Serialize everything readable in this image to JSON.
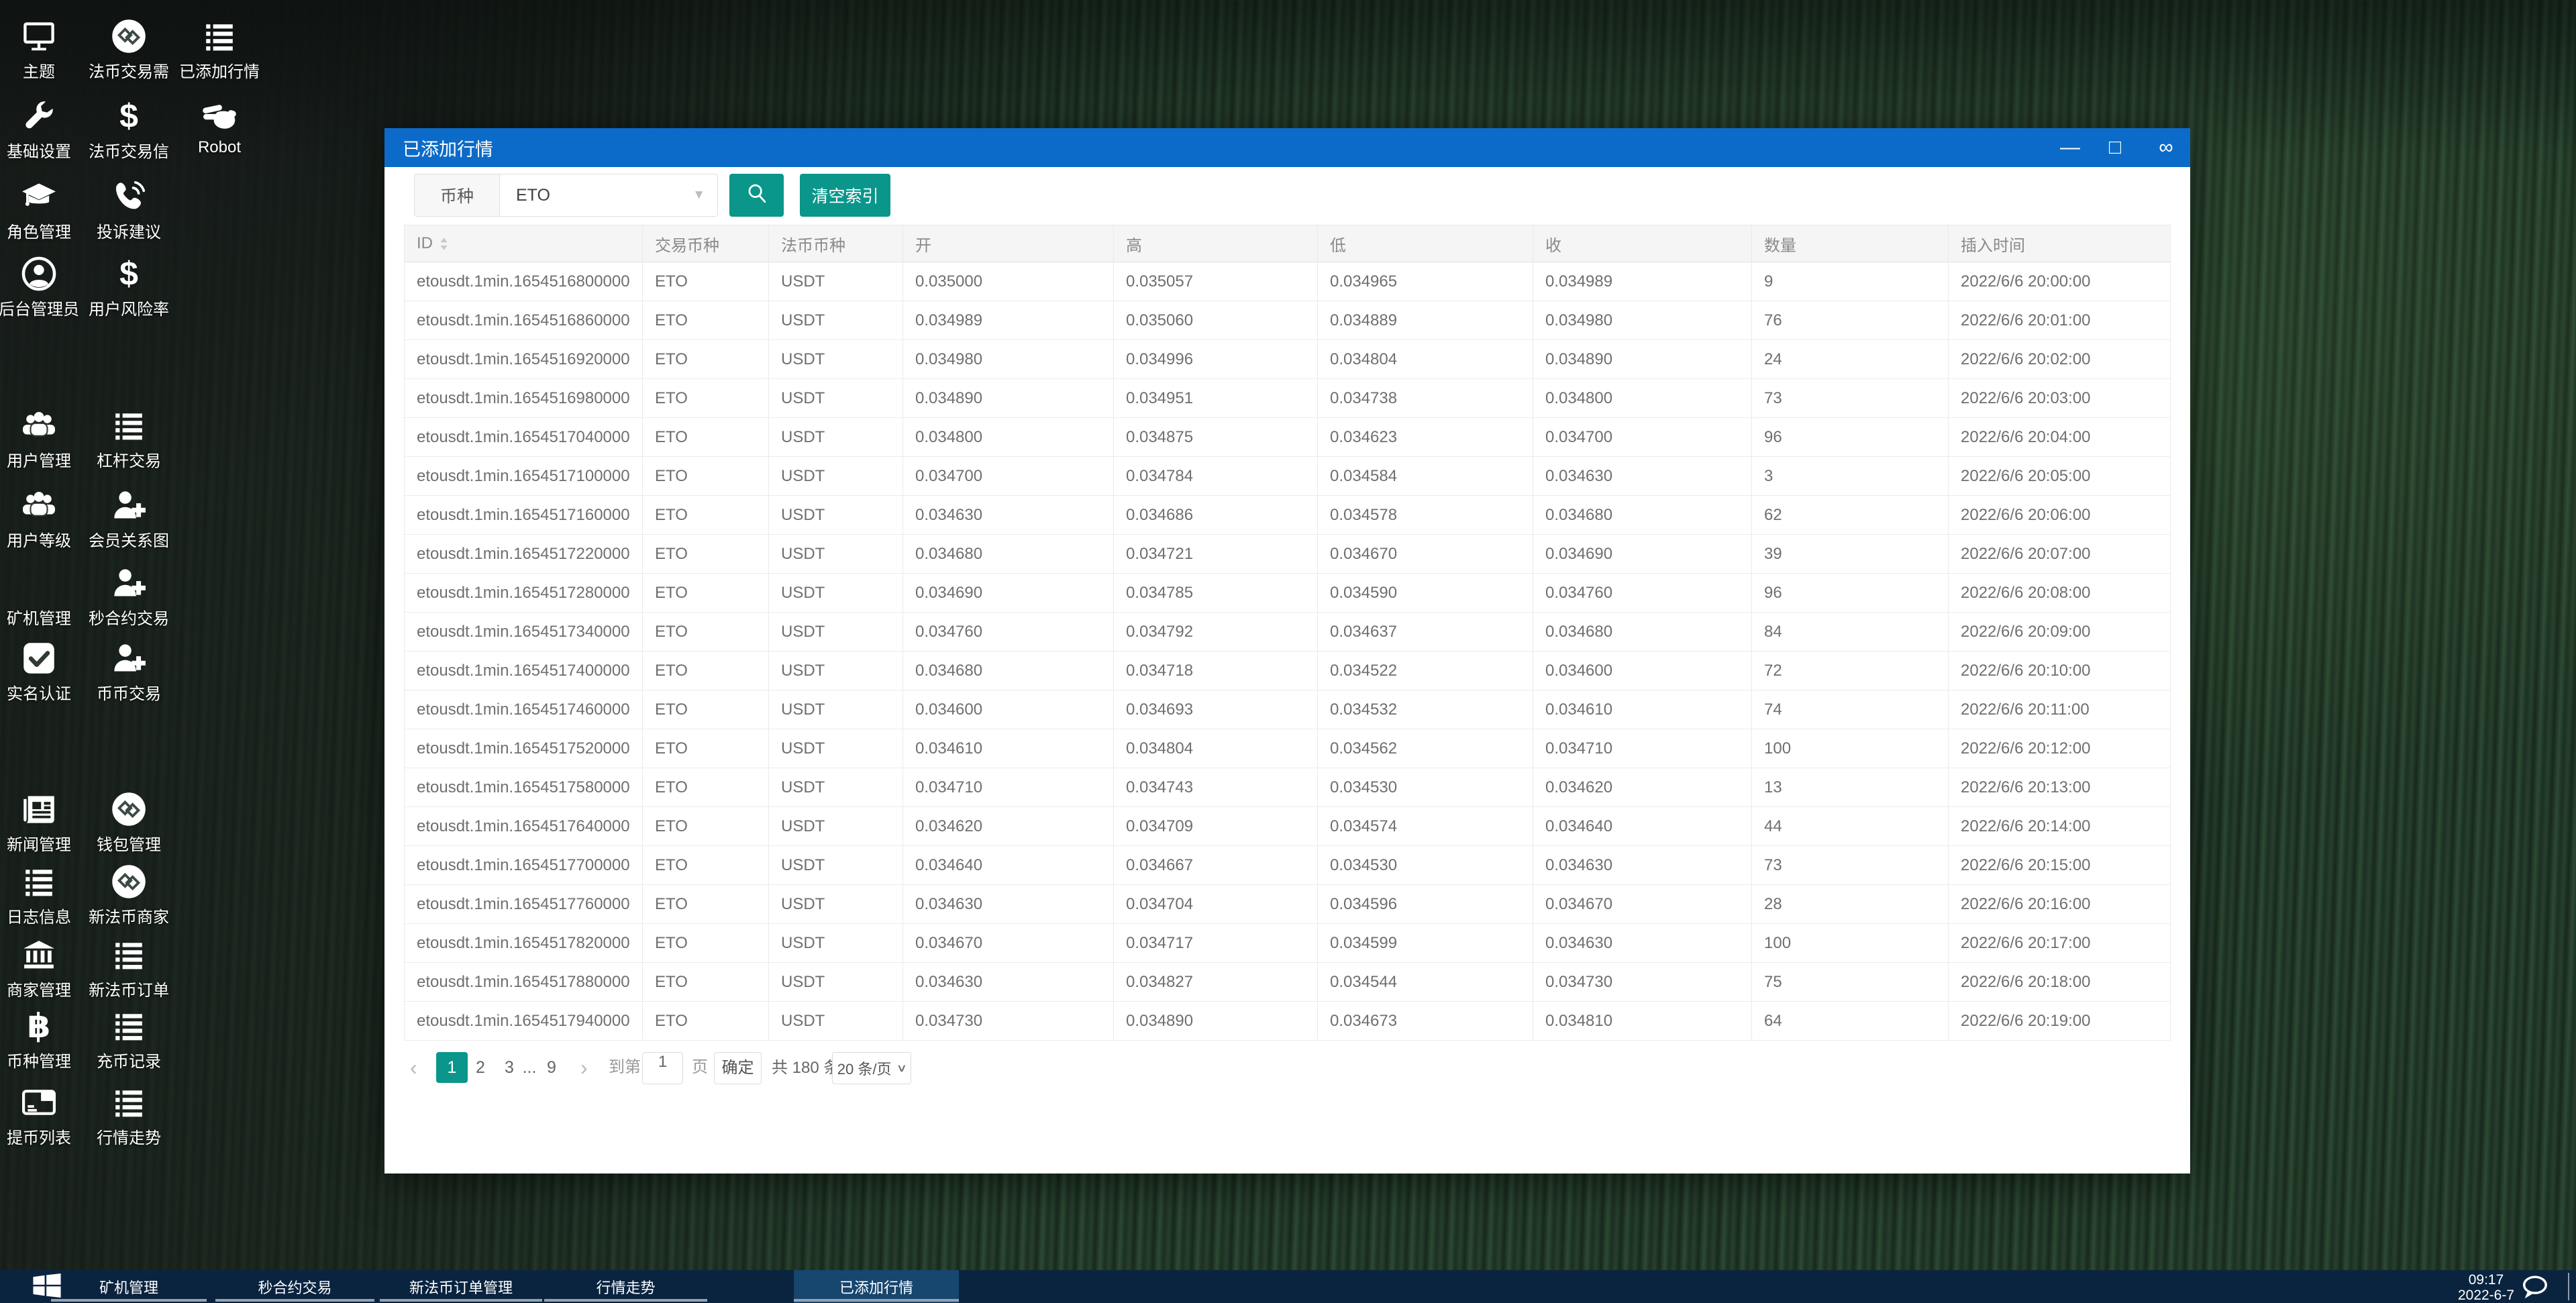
{
  "desktop": {
    "icons": [
      {
        "label": "主题",
        "icon": "monitor"
      },
      {
        "label": "法币交易需",
        "icon": "link-circle"
      },
      {
        "label": "已添加行情",
        "icon": "list"
      },
      {
        "label": "基础设置",
        "icon": "wrench"
      },
      {
        "label": "法币交易信",
        "icon": "dollar"
      },
      {
        "label": "Robot",
        "icon": "robot-hand"
      },
      {
        "label": "角色管理",
        "icon": "graduation-cap"
      },
      {
        "label": "投诉建议",
        "icon": "phone"
      },
      {
        "label": "后台管理员",
        "icon": "user-circle"
      },
      {
        "label": "用户风险率",
        "icon": "dollar"
      },
      {
        "label": "用户管理",
        "icon": "users"
      },
      {
        "label": "杠杆交易",
        "icon": "list"
      },
      {
        "label": "用户等级",
        "icon": "users"
      },
      {
        "label": "会员关系图",
        "icon": "user-plus"
      },
      {
        "label": "矿机管理",
        "icon": "none"
      },
      {
        "label": "秒合约交易",
        "icon": "user-plus"
      },
      {
        "label": "实名认证",
        "icon": "check-square"
      },
      {
        "label": "币币交易",
        "icon": "user-plus"
      },
      {
        "label": "新闻管理",
        "icon": "newspaper"
      },
      {
        "label": "钱包管理",
        "icon": "link-circle"
      },
      {
        "label": "日志信息",
        "icon": "list"
      },
      {
        "label": "新法币商家",
        "icon": "link-circle"
      },
      {
        "label": "商家管理",
        "icon": "bank"
      },
      {
        "label": "新法币订单",
        "icon": "list"
      },
      {
        "label": "币种管理",
        "icon": "bitcoin"
      },
      {
        "label": "充币记录",
        "icon": "list"
      },
      {
        "label": "提币列表",
        "icon": "credit-card"
      },
      {
        "label": "行情走势",
        "icon": "list"
      }
    ]
  },
  "window": {
    "title": "已添加行情",
    "controls": [
      {
        "name": "minimize",
        "glyph": "—"
      },
      {
        "name": "maximize",
        "glyph": "□"
      },
      {
        "name": "infinity",
        "glyph": "∞"
      }
    ],
    "filter": {
      "field_label": "币种",
      "selected_value": "ETO",
      "clear_button": "清空索引"
    },
    "table": {
      "headers": [
        "ID",
        "交易币种",
        "法币币种",
        "开",
        "高",
        "低",
        "收",
        "数量",
        "插入时间"
      ],
      "rows": [
        [
          "etousdt.1min.1654516800000",
          "ETO",
          "USDT",
          "0.035000",
          "0.035057",
          "0.034965",
          "0.034989",
          "9",
          "2022/6/6 20:00:00"
        ],
        [
          "etousdt.1min.1654516860000",
          "ETO",
          "USDT",
          "0.034989",
          "0.035060",
          "0.034889",
          "0.034980",
          "76",
          "2022/6/6 20:01:00"
        ],
        [
          "etousdt.1min.1654516920000",
          "ETO",
          "USDT",
          "0.034980",
          "0.034996",
          "0.034804",
          "0.034890",
          "24",
          "2022/6/6 20:02:00"
        ],
        [
          "etousdt.1min.1654516980000",
          "ETO",
          "USDT",
          "0.034890",
          "0.034951",
          "0.034738",
          "0.034800",
          "73",
          "2022/6/6 20:03:00"
        ],
        [
          "etousdt.1min.1654517040000",
          "ETO",
          "USDT",
          "0.034800",
          "0.034875",
          "0.034623",
          "0.034700",
          "96",
          "2022/6/6 20:04:00"
        ],
        [
          "etousdt.1min.1654517100000",
          "ETO",
          "USDT",
          "0.034700",
          "0.034784",
          "0.034584",
          "0.034630",
          "3",
          "2022/6/6 20:05:00"
        ],
        [
          "etousdt.1min.1654517160000",
          "ETO",
          "USDT",
          "0.034630",
          "0.034686",
          "0.034578",
          "0.034680",
          "62",
          "2022/6/6 20:06:00"
        ],
        [
          "etousdt.1min.1654517220000",
          "ETO",
          "USDT",
          "0.034680",
          "0.034721",
          "0.034670",
          "0.034690",
          "39",
          "2022/6/6 20:07:00"
        ],
        [
          "etousdt.1min.1654517280000",
          "ETO",
          "USDT",
          "0.034690",
          "0.034785",
          "0.034590",
          "0.034760",
          "96",
          "2022/6/6 20:08:00"
        ],
        [
          "etousdt.1min.1654517340000",
          "ETO",
          "USDT",
          "0.034760",
          "0.034792",
          "0.034637",
          "0.034680",
          "84",
          "2022/6/6 20:09:00"
        ],
        [
          "etousdt.1min.1654517400000",
          "ETO",
          "USDT",
          "0.034680",
          "0.034718",
          "0.034522",
          "0.034600",
          "72",
          "2022/6/6 20:10:00"
        ],
        [
          "etousdt.1min.1654517460000",
          "ETO",
          "USDT",
          "0.034600",
          "0.034693",
          "0.034532",
          "0.034610",
          "74",
          "2022/6/6 20:11:00"
        ],
        [
          "etousdt.1min.1654517520000",
          "ETO",
          "USDT",
          "0.034610",
          "0.034804",
          "0.034562",
          "0.034710",
          "100",
          "2022/6/6 20:12:00"
        ],
        [
          "etousdt.1min.1654517580000",
          "ETO",
          "USDT",
          "0.034710",
          "0.034743",
          "0.034530",
          "0.034620",
          "13",
          "2022/6/6 20:13:00"
        ],
        [
          "etousdt.1min.1654517640000",
          "ETO",
          "USDT",
          "0.034620",
          "0.034709",
          "0.034574",
          "0.034640",
          "44",
          "2022/6/6 20:14:00"
        ],
        [
          "etousdt.1min.1654517700000",
          "ETO",
          "USDT",
          "0.034640",
          "0.034667",
          "0.034530",
          "0.034630",
          "73",
          "2022/6/6 20:15:00"
        ],
        [
          "etousdt.1min.1654517760000",
          "ETO",
          "USDT",
          "0.034630",
          "0.034704",
          "0.034596",
          "0.034670",
          "28",
          "2022/6/6 20:16:00"
        ],
        [
          "etousdt.1min.1654517820000",
          "ETO",
          "USDT",
          "0.034670",
          "0.034717",
          "0.034599",
          "0.034630",
          "100",
          "2022/6/6 20:17:00"
        ],
        [
          "etousdt.1min.1654517880000",
          "ETO",
          "USDT",
          "0.034630",
          "0.034827",
          "0.034544",
          "0.034730",
          "75",
          "2022/6/6 20:18:00"
        ],
        [
          "etousdt.1min.1654517940000",
          "ETO",
          "USDT",
          "0.034730",
          "0.034890",
          "0.034673",
          "0.034810",
          "64",
          "2022/6/6 20:19:00"
        ]
      ]
    },
    "pagination": {
      "prev": "‹",
      "pages": [
        "1",
        "2",
        "3",
        "...",
        "9"
      ],
      "active_page": "1",
      "next": "›",
      "jump_prefix": "到第",
      "jump_value": "1",
      "jump_suffix": "页",
      "confirm": "确定",
      "total": "共 180 条",
      "page_size": "20 条/页"
    }
  },
  "taskbar": {
    "items": [
      {
        "label": "矿机管理",
        "active": false
      },
      {
        "label": "秒合约交易",
        "active": false
      },
      {
        "label": "新法币订单管理",
        "active": false
      },
      {
        "label": "行情走势",
        "active": false
      },
      {
        "label": "已添加行情",
        "active": true
      }
    ],
    "clock": {
      "time": "09:17",
      "date": "2022-6-7"
    }
  },
  "colors": {
    "titlebar_blue": "#0c6bc8",
    "accent_teal": "#0a968a",
    "taskbar_navy": "#0a2440",
    "taskbar_active": "#17466f"
  }
}
